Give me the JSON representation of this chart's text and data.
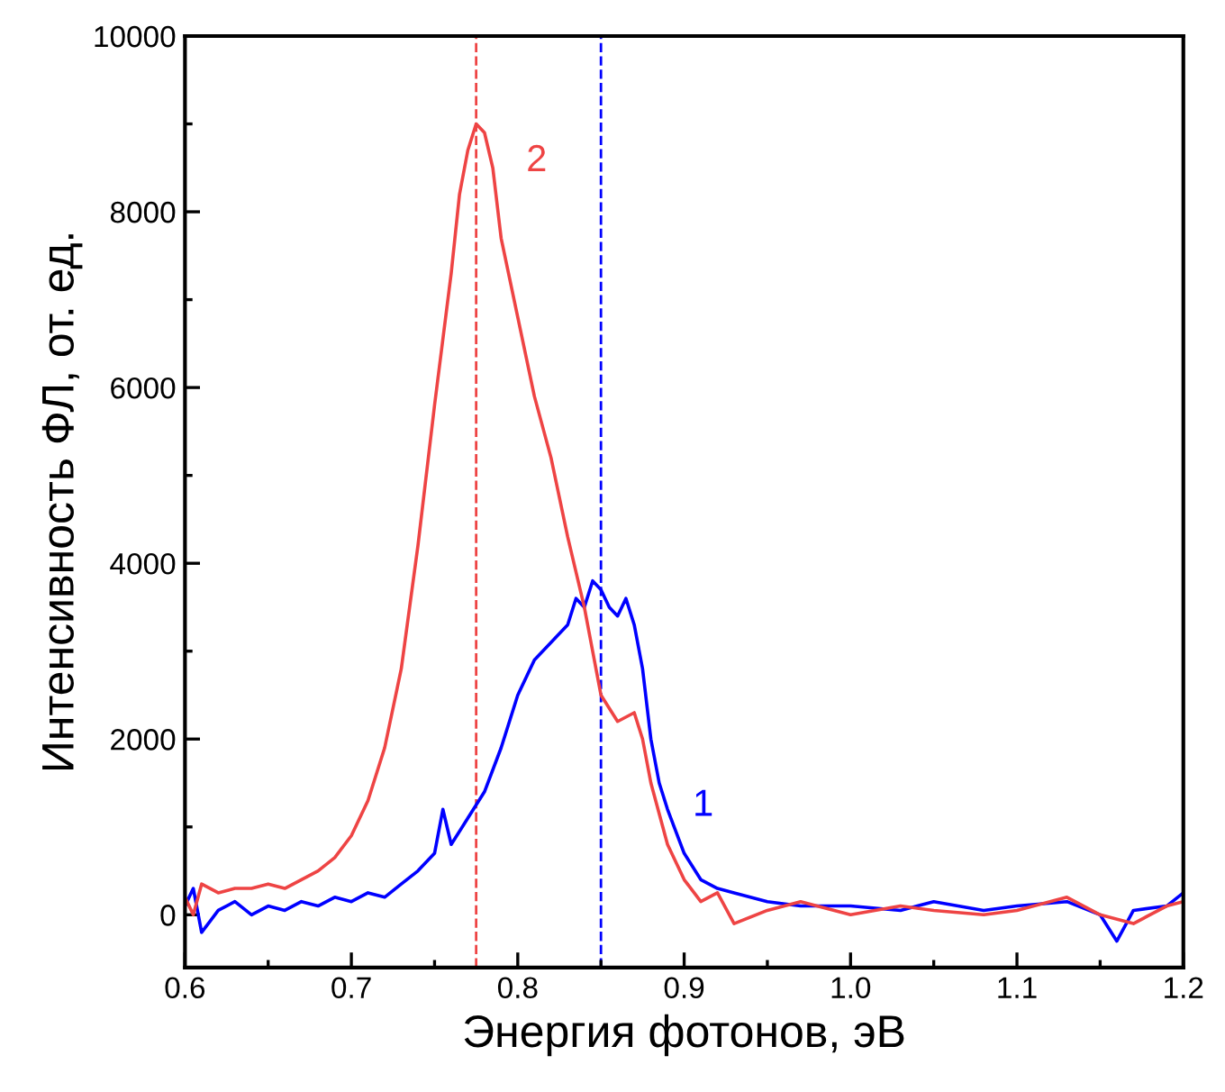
{
  "chart_data": {
    "type": "line",
    "xlabel": "Энергия фотонов, эВ",
    "ylabel": "Интенсивность ФЛ, от. ед.",
    "xlim": [
      0.6,
      1.2
    ],
    "xticks": [
      {
        "value": 0.6,
        "label": "0.6"
      },
      {
        "value": 0.7,
        "label": "0.7"
      },
      {
        "value": 0.8,
        "label": "0.8"
      },
      {
        "value": 0.9,
        "label": "0.9"
      },
      {
        "value": 1.0,
        "label": "1.0"
      },
      {
        "value": 1.1,
        "label": "1.1"
      },
      {
        "value": 1.2,
        "label": "1.2"
      }
    ],
    "ylim": [
      -600,
      10000
    ],
    "yticks": [
      0,
      2000,
      4000,
      6000,
      8000,
      10000
    ],
    "grid": false,
    "legend": false,
    "line_style": "solid",
    "marker": "none",
    "series": [
      {
        "name": "1",
        "color": "#0000ff",
        "x": [
          0.6,
          0.605,
          0.61,
          0.62,
          0.63,
          0.64,
          0.65,
          0.66,
          0.67,
          0.68,
          0.69,
          0.7,
          0.71,
          0.72,
          0.73,
          0.74,
          0.75,
          0.755,
          0.76,
          0.77,
          0.78,
          0.79,
          0.8,
          0.81,
          0.82,
          0.83,
          0.835,
          0.84,
          0.845,
          0.85,
          0.855,
          0.86,
          0.865,
          0.87,
          0.875,
          0.88,
          0.885,
          0.89,
          0.9,
          0.91,
          0.92,
          0.93,
          0.95,
          0.97,
          1.0,
          1.03,
          1.05,
          1.08,
          1.1,
          1.13,
          1.15,
          1.16,
          1.17,
          1.19,
          1.2
        ],
        "values": [
          100,
          300,
          -200,
          50,
          150,
          0,
          100,
          50,
          150,
          100,
          200,
          150,
          250,
          200,
          350,
          500,
          700,
          1200,
          800,
          1100,
          1400,
          1900,
          2500,
          2900,
          3100,
          3300,
          3600,
          3500,
          3800,
          3700,
          3500,
          3400,
          3600,
          3300,
          2800,
          2000,
          1500,
          1200,
          700,
          400,
          300,
          250,
          150,
          100,
          100,
          50,
          150,
          50,
          100,
          150,
          0,
          -300,
          50,
          100,
          250
        ]
      },
      {
        "name": "2",
        "color": "#ee4444",
        "x": [
          0.6,
          0.605,
          0.61,
          0.62,
          0.63,
          0.64,
          0.65,
          0.66,
          0.67,
          0.68,
          0.69,
          0.7,
          0.71,
          0.72,
          0.73,
          0.74,
          0.75,
          0.76,
          0.765,
          0.77,
          0.775,
          0.78,
          0.785,
          0.79,
          0.8,
          0.81,
          0.82,
          0.83,
          0.84,
          0.845,
          0.85,
          0.86,
          0.87,
          0.875,
          0.88,
          0.89,
          0.9,
          0.91,
          0.92,
          0.93,
          0.95,
          0.97,
          1.0,
          1.03,
          1.05,
          1.08,
          1.1,
          1.13,
          1.15,
          1.17,
          1.19,
          1.2
        ],
        "values": [
          200,
          0,
          350,
          250,
          300,
          300,
          350,
          300,
          400,
          500,
          650,
          900,
          1300,
          1900,
          2800,
          4200,
          5800,
          7300,
          8200,
          8700,
          9000,
          8900,
          8500,
          7700,
          6800,
          5900,
          5200,
          4300,
          3500,
          3000,
          2500,
          2200,
          2300,
          2000,
          1500,
          800,
          400,
          150,
          250,
          -100,
          50,
          150,
          0,
          100,
          50,
          0,
          50,
          200,
          0,
          -100,
          100,
          150
        ]
      }
    ],
    "ref_lines": [
      {
        "axis": "x",
        "value": 0.775,
        "color": "#ee4444",
        "line_style": "dashed"
      },
      {
        "axis": "x",
        "value": 0.85,
        "color": "#0000ff",
        "line_style": "dashed"
      }
    ]
  }
}
